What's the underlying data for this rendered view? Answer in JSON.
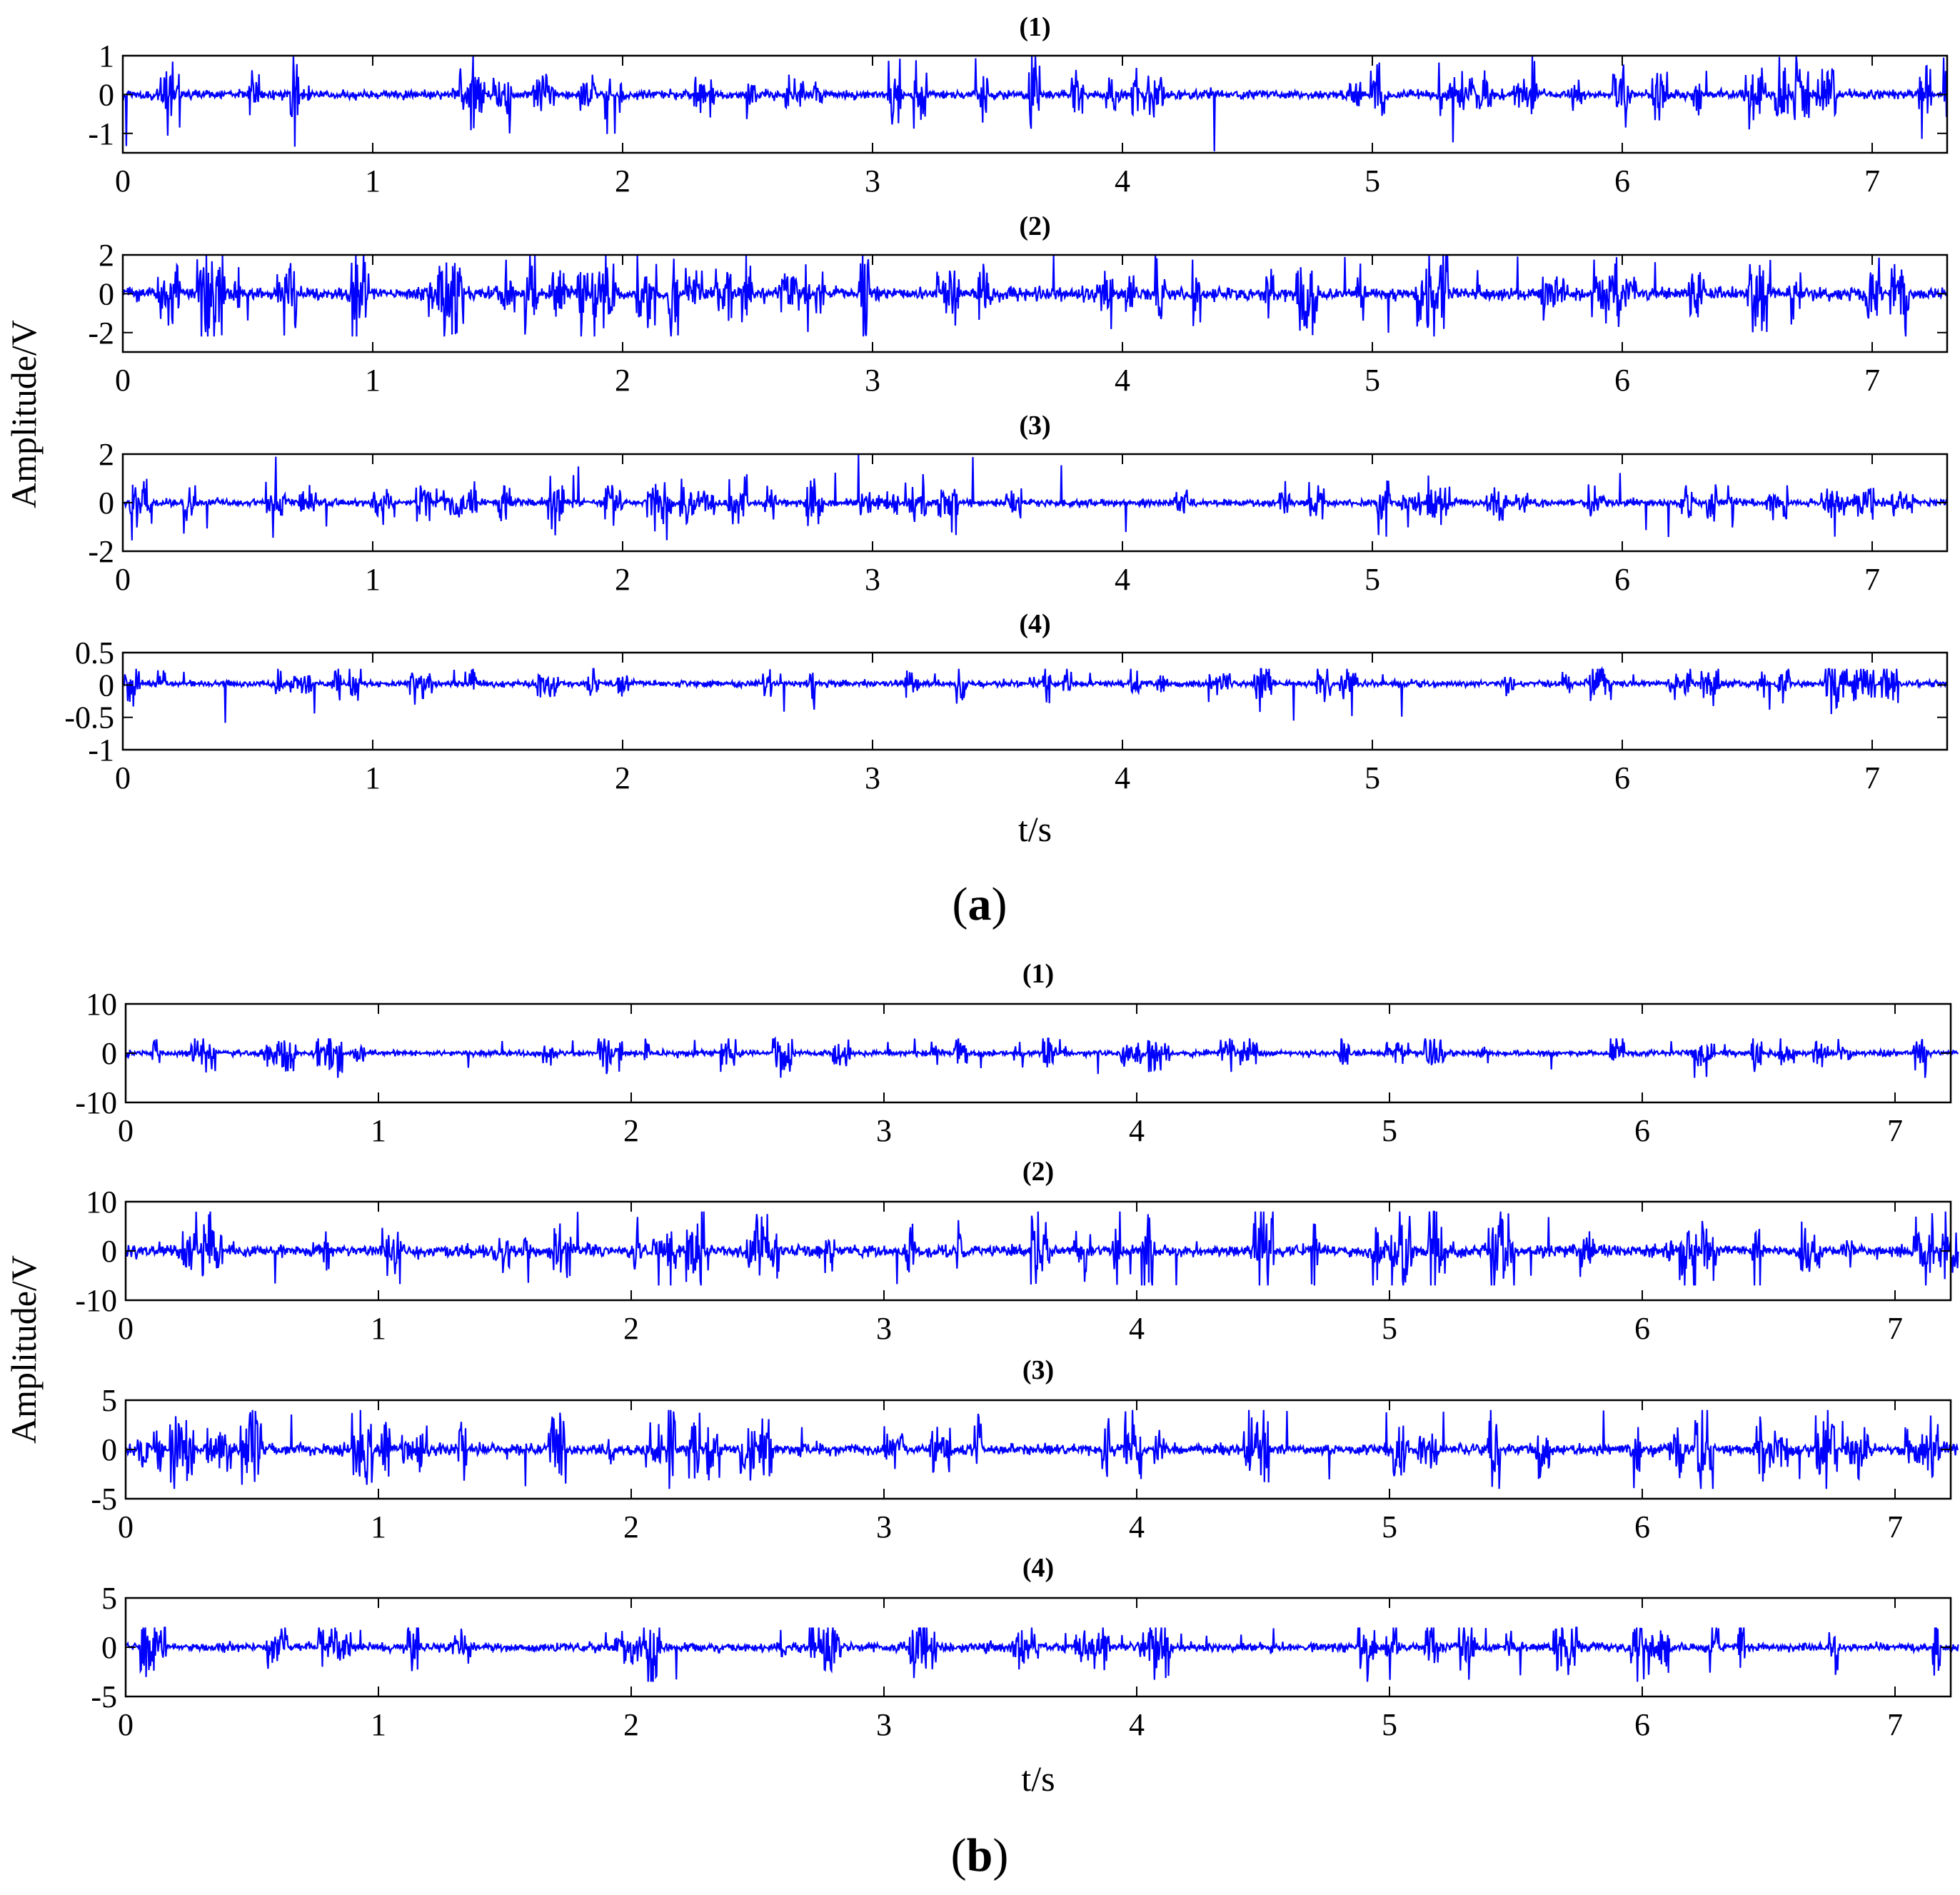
{
  "figure": {
    "groups": [
      {
        "caption": "(a)",
        "caption_letter": "a",
        "ylabel": "Amplitude/V",
        "xlabel": "t/s",
        "xticks": [
          "0",
          "1",
          "2",
          "3",
          "4",
          "5",
          "6",
          "7"
        ],
        "panels": [
          {
            "title": "(1)",
            "yticks": [
              "1",
              "0",
              "-1"
            ]
          },
          {
            "title": "(2)",
            "yticks": [
              "2",
              "0",
              "-2"
            ]
          },
          {
            "title": "(3)",
            "yticks": [
              "2",
              "0",
              "-2"
            ]
          },
          {
            "title": "(4)",
            "yticks": [
              "0.5",
              "0",
              "-0.5",
              "-1"
            ]
          }
        ]
      },
      {
        "caption": "(b)",
        "caption_letter": "b",
        "ylabel": "Amplitude/V",
        "xlabel": "t/s",
        "xticks": [
          "0",
          "1",
          "2",
          "3",
          "4",
          "5",
          "6",
          "7"
        ],
        "panels": [
          {
            "title": "(1)",
            "yticks": [
              "10",
              "0",
              "-10"
            ]
          },
          {
            "title": "(2)",
            "yticks": [
              "10",
              "0",
              "-10"
            ]
          },
          {
            "title": "(3)",
            "yticks": [
              "5",
              "0",
              "-5"
            ]
          },
          {
            "title": "(4)",
            "yticks": [
              "5",
              "0",
              "-5"
            ]
          }
        ]
      }
    ]
  },
  "chart_data": [
    {
      "type": "line",
      "group": "a",
      "title": "(1)",
      "xlabel": "",
      "ylabel": "Amplitude/V",
      "xlim": [
        0,
        7.3
      ],
      "ylim": [
        -1.5,
        1
      ],
      "yticks": [
        1,
        0,
        -1
      ],
      "xticks": [
        0,
        1,
        2,
        3,
        4,
        5,
        6,
        7
      ],
      "color": "#0000ff",
      "grid": false,
      "series": [
        {
          "x_range": [
            0,
            7.3
          ],
          "baseline": 0,
          "noise_std": 0.12,
          "typical_range": [
            -0.6,
            0.6
          ],
          "peak_max": 1.0,
          "peak_min": -1.5
        }
      ]
    },
    {
      "type": "line",
      "group": "a",
      "title": "(2)",
      "xlabel": "",
      "ylabel": "Amplitude/V",
      "xlim": [
        0,
        7.3
      ],
      "ylim": [
        -3,
        2
      ],
      "yticks": [
        2,
        0,
        -2
      ],
      "xticks": [
        0,
        1,
        2,
        3,
        4,
        5,
        6,
        7
      ],
      "color": "#0000ff",
      "grid": false,
      "series": [
        {
          "x_range": [
            0,
            7.3
          ],
          "baseline": 0,
          "noise_std": 0.35,
          "typical_range": [
            -1.5,
            1.5
          ],
          "peak_max": 2.0,
          "peak_min": -2.2
        }
      ]
    },
    {
      "type": "line",
      "group": "a",
      "title": "(3)",
      "xlabel": "",
      "ylabel": "Amplitude/V",
      "xlim": [
        0,
        7.3
      ],
      "ylim": [
        -2,
        2
      ],
      "yticks": [
        2,
        0,
        -2
      ],
      "xticks": [
        0,
        1,
        2,
        3,
        4,
        5,
        6,
        7
      ],
      "color": "#0000ff",
      "grid": false,
      "series": [
        {
          "x_range": [
            0,
            7.3
          ],
          "baseline": 0,
          "noise_std": 0.15,
          "typical_range": [
            -1.0,
            1.0
          ],
          "peak_max": 2.0,
          "peak_min": -1.6
        }
      ]
    },
    {
      "type": "line",
      "group": "a",
      "title": "(4)",
      "xlabel": "",
      "ylabel": "Amplitude/V",
      "xlim": [
        0,
        7.3
      ],
      "ylim": [
        -1,
        0.5
      ],
      "yticks": [
        0.5,
        0,
        -0.5,
        -1
      ],
      "xticks": [
        0,
        1,
        2,
        3,
        4,
        5,
        6,
        7
      ],
      "color": "#0000ff",
      "grid": false,
      "series": [
        {
          "x_range": [
            0,
            7.3
          ],
          "baseline": 0.02,
          "noise_std": 0.05,
          "typical_range": [
            -0.3,
            0.1
          ],
          "peak_max": 0.25,
          "peak_min": -0.7
        }
      ]
    },
    {
      "type": "line",
      "group": "b",
      "title": "(1)",
      "xlabel": "",
      "ylabel": "Amplitude/V",
      "xlim": [
        0,
        7.25
      ],
      "ylim": [
        -10,
        10
      ],
      "yticks": [
        10,
        0,
        -10
      ],
      "xticks": [
        0,
        1,
        2,
        3,
        4,
        5,
        6,
        7
      ],
      "color": "#0000ff",
      "grid": false,
      "series": [
        {
          "x_range": [
            0,
            7.25
          ],
          "baseline": 0,
          "noise_std": 0.6,
          "typical_range": [
            -3,
            2
          ],
          "peak_max": 3,
          "peak_min": -5
        }
      ]
    },
    {
      "type": "line",
      "group": "b",
      "title": "(2)",
      "xlabel": "",
      "ylabel": "Amplitude/V",
      "xlim": [
        0,
        7.25
      ],
      "ylim": [
        -10,
        10
      ],
      "yticks": [
        10,
        0,
        -10
      ],
      "xticks": [
        0,
        1,
        2,
        3,
        4,
        5,
        6,
        7
      ],
      "color": "#0000ff",
      "grid": false,
      "series": [
        {
          "x_range": [
            0,
            7.25
          ],
          "baseline": 0,
          "noise_std": 1.3,
          "typical_range": [
            -4,
            4
          ],
          "peak_max": 8,
          "peak_min": -7
        }
      ]
    },
    {
      "type": "line",
      "group": "b",
      "title": "(3)",
      "xlabel": "",
      "ylabel": "Amplitude/V",
      "xlim": [
        0,
        7.25
      ],
      "ylim": [
        -5,
        5
      ],
      "yticks": [
        5,
        0,
        -5
      ],
      "xticks": [
        0,
        1,
        2,
        3,
        4,
        5,
        6,
        7
      ],
      "color": "#0000ff",
      "grid": false,
      "series": [
        {
          "x_range": [
            0,
            7.25
          ],
          "baseline": 0,
          "noise_std": 0.6,
          "typical_range": [
            -3,
            3
          ],
          "peak_max": 4,
          "peak_min": -4
        }
      ]
    },
    {
      "type": "line",
      "group": "b",
      "title": "(4)",
      "xlabel": "",
      "ylabel": "Amplitude/V",
      "xlim": [
        0,
        7.25
      ],
      "ylim": [
        -5,
        5
      ],
      "yticks": [
        5,
        0,
        -5
      ],
      "xticks": [
        0,
        1,
        2,
        3,
        4,
        5,
        6,
        7
      ],
      "color": "#0000ff",
      "grid": false,
      "series": [
        {
          "x_range": [
            0,
            7.25
          ],
          "baseline": 0,
          "noise_std": 0.45,
          "typical_range": [
            -2.5,
            2
          ],
          "peak_max": 2,
          "peak_min": -3.5
        }
      ]
    }
  ]
}
